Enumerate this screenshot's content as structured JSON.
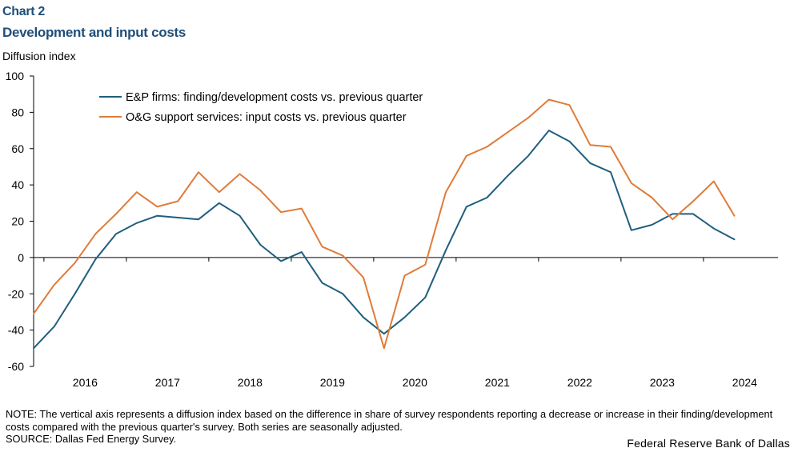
{
  "header": {
    "chart_label": "Chart 2",
    "title": "Development and input costs",
    "y_unit": "Diffusion index"
  },
  "footer": {
    "note": "NOTE: The vertical axis represents a diffusion index based on the difference in share of survey respondents reporting a decrease or increase in their finding/development  costs compared with the previous quarter's survey. Both series are seasonally adjusted.",
    "source": "SOURCE: Dallas Fed Energy Survey.",
    "credit": "Federal Reserve Bank of Dallas"
  },
  "chart_data": {
    "type": "line",
    "title": "Development and input costs",
    "ylabel": "Diffusion index",
    "xlabel": "",
    "ylim": [
      -60,
      100
    ],
    "yticks": [
      -60,
      -40,
      -20,
      0,
      20,
      40,
      60,
      80,
      100
    ],
    "year_labels": [
      "2016",
      "2017",
      "2018",
      "2019",
      "2020",
      "2021",
      "2022",
      "2023",
      "2024"
    ],
    "quarters": [
      "2015Q4",
      "2016Q1",
      "2016Q2",
      "2016Q3",
      "2016Q4",
      "2017Q1",
      "2017Q2",
      "2017Q3",
      "2017Q4",
      "2018Q1",
      "2018Q2",
      "2018Q3",
      "2018Q4",
      "2019Q1",
      "2019Q2",
      "2019Q3",
      "2019Q4",
      "2020Q1",
      "2020Q2",
      "2020Q3",
      "2020Q4",
      "2021Q1",
      "2021Q2",
      "2021Q3",
      "2021Q4",
      "2022Q1",
      "2022Q2",
      "2022Q3",
      "2022Q4",
      "2023Q1",
      "2023Q2",
      "2023Q3",
      "2023Q4",
      "2024Q1",
      "2024Q2"
    ],
    "legend_position": "top-left",
    "series": [
      {
        "name": "E&P firms: finding/development costs vs. previous quarter",
        "color": "#1f5f7f",
        "values": [
          -50,
          -38,
          -20,
          -1,
          13,
          19,
          23,
          22,
          21,
          30,
          23,
          7,
          -2,
          3,
          -14,
          -20,
          -33,
          -42,
          -33,
          -22,
          4,
          28,
          33,
          45,
          56,
          70,
          64,
          52,
          47,
          15,
          18,
          24,
          24,
          16,
          10
        ]
      },
      {
        "name": "O&G support services: input costs vs. previous quarter",
        "color": "#e07b39",
        "values": [
          -31,
          -15,
          -3,
          13,
          24,
          36,
          28,
          31,
          47,
          36,
          46,
          37,
          25,
          27,
          6,
          1,
          -11,
          -50,
          -10,
          -4,
          36,
          56,
          61,
          69,
          77,
          87,
          84,
          62,
          61,
          41,
          33,
          21,
          31,
          42,
          23
        ]
      }
    ]
  }
}
